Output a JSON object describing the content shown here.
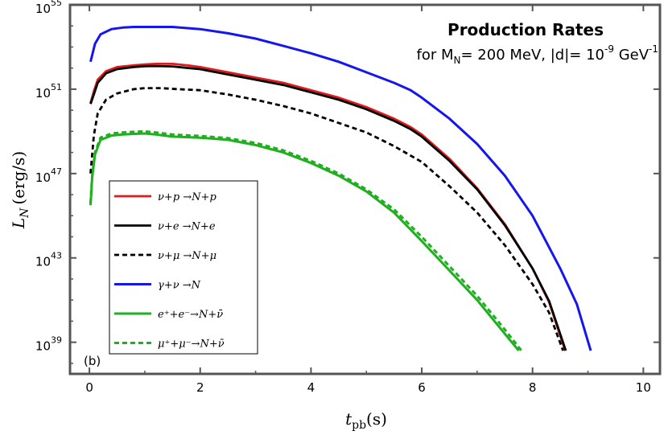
{
  "chart_data": {
    "type": "line",
    "title": "Production Rates",
    "subtitle": "for M_N= 200 MeV, |d|= 10^-9 GeV^-1",
    "subtitle_parts": {
      "prefix": "for M",
      "m_sub": "N",
      "mid": "= 200 MeV, |d|= 10",
      "exp1": "-9",
      "unit": " GeV",
      "exp2": "-1"
    },
    "xlabel": "t_pb(s)",
    "xlabel_parts": {
      "t": "t",
      "sub": "pb",
      "rest": "(s)"
    },
    "ylabel": "L_N (erg/s)",
    "ylabel_parts": {
      "l": "L",
      "sub": "N",
      "rest": "(erg/s)"
    },
    "panel_label": "(b)",
    "xlim": [
      -0.35,
      10.3
    ],
    "ylim": [
      37.5,
      55
    ],
    "yscale": "log",
    "x_ticks": [
      {
        "value": 0,
        "label": "0"
      },
      {
        "value": 2,
        "label": "2"
      },
      {
        "value": 4,
        "label": "4"
      },
      {
        "value": 6,
        "label": "6"
      },
      {
        "value": 8,
        "label": "8"
      },
      {
        "value": 10,
        "label": "10"
      }
    ],
    "y_ticks": [
      {
        "value": 55,
        "base": "10",
        "exp": "55"
      },
      {
        "value": 51,
        "base": "10",
        "exp": "51"
      },
      {
        "value": 47,
        "base": "10",
        "exp": "47"
      },
      {
        "value": 43,
        "base": "10",
        "exp": "43"
      },
      {
        "value": 39,
        "base": "10",
        "exp": "39"
      }
    ],
    "grid": false,
    "legend_position": "left-center",
    "series": [
      {
        "name": "ν+p → N+p",
        "color": "#e31a1c",
        "dash": "solid",
        "width": 2.8,
        "x": [
          0.02,
          0.08,
          0.15,
          0.3,
          0.5,
          0.8,
          1.0,
          1.2,
          1.5,
          1.8,
          2.0,
          2.5,
          3.0,
          3.5,
          4.0,
          4.5,
          5.0,
          5.5,
          5.8,
          6.0,
          6.5,
          7.0,
          7.5,
          8.0,
          8.3,
          8.59
        ],
        "y": [
          50.35,
          50.9,
          51.45,
          51.85,
          52.05,
          52.13,
          52.17,
          52.2,
          52.2,
          52.12,
          52.05,
          51.8,
          51.55,
          51.3,
          50.95,
          50.6,
          50.15,
          49.6,
          49.2,
          48.85,
          47.7,
          46.3,
          44.6,
          42.5,
          40.9,
          38.6
        ]
      },
      {
        "name": "ν+e → N+e",
        "color": "#000000",
        "dash": "solid",
        "width": 2.8,
        "x": [
          0.02,
          0.08,
          0.15,
          0.3,
          0.5,
          0.8,
          1.0,
          1.2,
          1.5,
          1.8,
          2.0,
          2.5,
          3.0,
          3.5,
          4.0,
          4.5,
          5.0,
          5.5,
          5.8,
          6.0,
          6.5,
          7.0,
          7.5,
          8.0,
          8.3,
          8.6
        ],
        "y": [
          50.3,
          50.75,
          51.3,
          51.75,
          51.95,
          52.05,
          52.09,
          52.1,
          52.08,
          52.0,
          51.95,
          51.7,
          51.45,
          51.2,
          50.85,
          50.5,
          50.05,
          49.5,
          49.1,
          48.75,
          47.6,
          46.25,
          44.55,
          42.5,
          40.95,
          38.6
        ]
      },
      {
        "name": "ν+μ → N+μ",
        "color": "#000000",
        "dash": "dashed",
        "width": 2.8,
        "x": [
          0.02,
          0.08,
          0.15,
          0.3,
          0.5,
          0.8,
          1.0,
          1.3,
          1.6,
          2.0,
          2.5,
          3.0,
          3.5,
          4.0,
          4.5,
          5.0,
          5.5,
          6.0,
          6.5,
          7.0,
          7.5,
          8.0,
          8.3,
          8.55
        ],
        "y": [
          47.0,
          48.8,
          49.85,
          50.5,
          50.8,
          51.0,
          51.05,
          51.05,
          51.0,
          50.95,
          50.75,
          50.5,
          50.2,
          49.85,
          49.4,
          48.95,
          48.3,
          47.55,
          46.4,
          45.15,
          43.6,
          41.75,
          40.4,
          38.6
        ]
      },
      {
        "name": "γ+ν → N",
        "color": "#1515f0",
        "dash": "solid",
        "width": 3.0,
        "x": [
          0.02,
          0.1,
          0.2,
          0.4,
          0.6,
          0.8,
          1.0,
          1.5,
          2.0,
          2.5,
          3.0,
          3.5,
          4.0,
          4.5,
          5.0,
          5.5,
          5.8,
          6.0,
          6.5,
          7.0,
          7.5,
          8.0,
          8.5,
          8.8,
          9.05
        ],
        "y": [
          52.3,
          53.15,
          53.6,
          53.85,
          53.92,
          53.95,
          53.95,
          53.95,
          53.85,
          53.65,
          53.4,
          53.05,
          52.7,
          52.3,
          51.8,
          51.3,
          50.95,
          50.6,
          49.6,
          48.4,
          46.9,
          45.0,
          42.5,
          40.8,
          38.6
        ]
      },
      {
        "name": "e⁺+e⁻ → N+ν̄",
        "color": "#1fb01f",
        "dash": "solid",
        "width": 3.0,
        "x": [
          0.02,
          0.05,
          0.1,
          0.2,
          0.4,
          0.6,
          0.8,
          1.0,
          1.2,
          1.5,
          2.0,
          2.5,
          3.0,
          3.5,
          4.0,
          4.5,
          5.0,
          5.5,
          6.0,
          6.5,
          7.0,
          7.5,
          7.75
        ],
        "y": [
          45.5,
          46.8,
          47.9,
          48.6,
          48.8,
          48.85,
          48.88,
          48.9,
          48.85,
          48.75,
          48.7,
          48.6,
          48.35,
          48.0,
          47.5,
          46.9,
          46.15,
          45.15,
          43.8,
          42.4,
          41.0,
          39.4,
          38.6
        ]
      },
      {
        "name": "μ⁺+μ⁻ → N+ν̄",
        "color": "#1fb01f",
        "dash": "dashed",
        "width": 3.0,
        "x": [
          0.02,
          0.05,
          0.1,
          0.2,
          0.4,
          0.6,
          0.8,
          1.0,
          1.2,
          1.5,
          2.0,
          2.5,
          3.0,
          3.5,
          4.0,
          4.5,
          5.0,
          5.5,
          6.0,
          6.5,
          7.0,
          7.5,
          7.8
        ],
        "y": [
          45.6,
          46.9,
          48.0,
          48.7,
          48.9,
          48.95,
          48.98,
          49.0,
          48.95,
          48.85,
          48.78,
          48.68,
          48.45,
          48.1,
          47.6,
          47.0,
          46.25,
          45.3,
          44.0,
          42.6,
          41.2,
          39.6,
          38.6
        ]
      }
    ],
    "legend_entries": [
      {
        "parts": [
          "ν",
          "+",
          "p",
          " →",
          "N",
          "+",
          "p"
        ]
      },
      {
        "parts": [
          "ν",
          "+",
          "e",
          " →",
          "N",
          "+",
          "e"
        ]
      },
      {
        "parts": [
          "ν",
          "+",
          "μ",
          " →",
          "N",
          "+",
          "μ"
        ]
      },
      {
        "parts": [
          "γ",
          "+",
          "ν",
          " →",
          "N"
        ]
      },
      {
        "parts": [
          "e⁺",
          "+",
          "e⁻",
          "→",
          "N",
          "+",
          "ν̄"
        ]
      },
      {
        "parts": [
          "μ⁺",
          "+",
          "μ⁻",
          "→",
          "N",
          "+",
          "ν̄"
        ]
      }
    ]
  }
}
